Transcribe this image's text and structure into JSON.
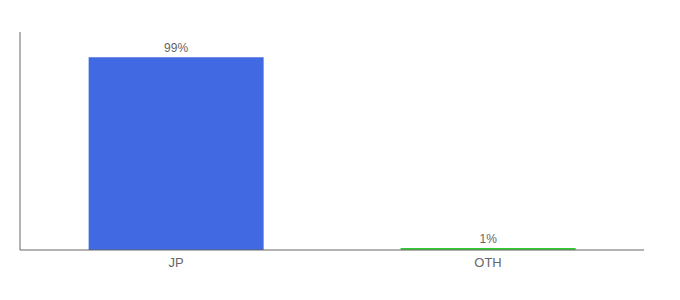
{
  "chart_data": {
    "type": "bar",
    "categories": [
      "JP",
      "OTH"
    ],
    "values": [
      99,
      1
    ],
    "value_labels": [
      "99%",
      "1%"
    ],
    "colors": [
      "#4169e1",
      "#32cd32"
    ],
    "ylim": [
      0,
      112
    ],
    "grid": false,
    "data_labels": true,
    "tick_labels": "x"
  }
}
